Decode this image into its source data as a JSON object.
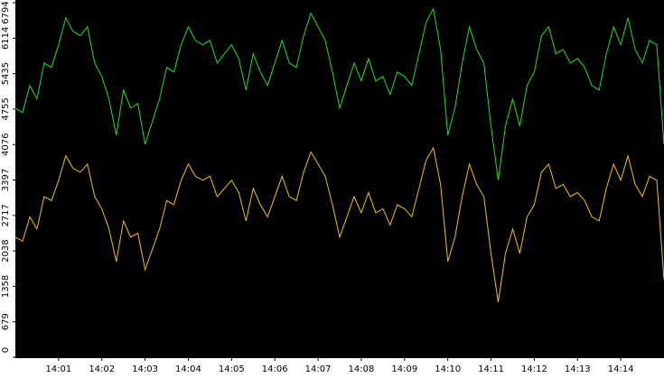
{
  "chart_data": {
    "type": "line",
    "categories": [
      null,
      null,
      null,
      null,
      null,
      null,
      "14:01",
      null,
      null,
      null,
      null,
      null,
      "14:02",
      null,
      null,
      null,
      null,
      null,
      "14:03",
      null,
      null,
      null,
      null,
      null,
      "14:04",
      null,
      null,
      null,
      null,
      null,
      "14:05",
      null,
      null,
      null,
      null,
      null,
      "14:06",
      null,
      null,
      null,
      null,
      null,
      "14:07",
      null,
      null,
      null,
      null,
      null,
      "14:08",
      null,
      null,
      null,
      null,
      null,
      "14:09",
      null,
      null,
      null,
      null,
      null,
      "14:10",
      null,
      null,
      null,
      null,
      null,
      "14:11",
      null,
      null,
      null,
      null,
      null,
      "14:12",
      null,
      null,
      null,
      null,
      null,
      "14:13",
      null,
      null,
      null,
      null,
      null,
      "14:14",
      null,
      null,
      null,
      null,
      null,
      null
    ],
    "series": [
      {
        "color": "#22e022",
        "values": [
          4775,
          4688,
          5207,
          4948,
          5640,
          5553,
          5986,
          6505,
          6245,
          6159,
          6332,
          5640,
          5380,
          4948,
          4256,
          5121,
          4775,
          4861,
          4083,
          4515,
          4948,
          5553,
          5467,
          5986,
          6332,
          6072,
          5986,
          6072,
          5640,
          5813,
          5986,
          5726,
          5121,
          5813,
          5467,
          5207,
          5640,
          6072,
          5640,
          5553,
          6159,
          6591,
          6332,
          6072,
          5467,
          4775,
          5207,
          5640,
          5294,
          5726,
          5294,
          5380,
          5034,
          5467,
          5380,
          5207,
          5813,
          6418,
          6678,
          5899,
          4256,
          4775,
          5640,
          6332,
          5899,
          5640,
          4429,
          3391,
          4429,
          4948,
          4429,
          5207,
          5467,
          6159,
          6332,
          5813,
          5899,
          5640,
          5726,
          5553,
          5207,
          5121,
          5813,
          6332,
          5986,
          6505,
          5899,
          5640,
          6072,
          5986,
          4083
        ]
      },
      {
        "color": "#f2c010",
        "values": [
          2301,
          2223,
          2690,
          2456,
          3079,
          3001,
          3391,
          3858,
          3624,
          3546,
          3702,
          3079,
          2846,
          2456,
          1833,
          2612,
          2301,
          2379,
          1678,
          2067,
          2456,
          3001,
          2923,
          3391,
          3702,
          3468,
          3391,
          3468,
          3079,
          3235,
          3391,
          3157,
          2612,
          3235,
          2923,
          2690,
          3079,
          3468,
          3079,
          3001,
          3546,
          3935,
          3702,
          3468,
          2923,
          2301,
          2690,
          3079,
          2768,
          3157,
          2768,
          2846,
          2534,
          2923,
          2846,
          2690,
          3235,
          3780,
          4013,
          3313,
          1833,
          2301,
          3079,
          3702,
          3313,
          3079,
          1989,
          1055,
          1989,
          2456,
          1989,
          2690,
          2923,
          3546,
          3702,
          3235,
          3313,
          3079,
          3157,
          3001,
          2690,
          2612,
          3235,
          3702,
          3391,
          3858,
          3313,
          3079,
          3468,
          3391,
          1488
        ]
      }
    ],
    "ylim": [
      0,
      6794
    ],
    "yticks": [
      0,
      679,
      1358,
      2038,
      2717,
      3397,
      4076,
      4755,
      5435,
      6114,
      6794
    ]
  }
}
